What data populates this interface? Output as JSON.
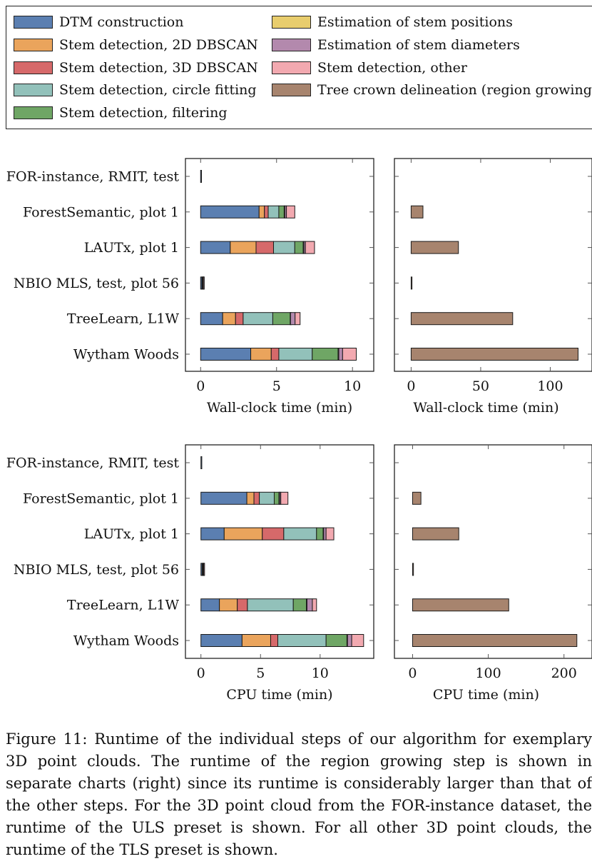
{
  "legend": {
    "items": [
      {
        "label": "DTM construction",
        "color": "#5b7fb1"
      },
      {
        "label": "Stem detection, 2D DBSCAN",
        "color": "#eaa45c"
      },
      {
        "label": "Stem detection, 3D DBSCAN",
        "color": "#d6696a"
      },
      {
        "label": "Stem detection, circle fitting",
        "color": "#92c1ba"
      },
      {
        "label": "Stem detection, filtering",
        "color": "#6fa665"
      },
      {
        "label": "Estimation of stem positions",
        "color": "#e8cd6d"
      },
      {
        "label": "Estimation of stem diameters",
        "color": "#b389ad"
      },
      {
        "label": "Stem detection, other",
        "color": "#f2a9b0"
      },
      {
        "label": "Tree crown delineation (region growing)",
        "color": "#a7846e"
      }
    ]
  },
  "chart_data": [
    {
      "type": "bar",
      "stacked": true,
      "orientation": "horizontal",
      "xlabel": "Wall-clock time (min)",
      "xlim": [
        -1,
        11.4
      ],
      "xticks": [
        0,
        5,
        10
      ],
      "categories": [
        "FOR-instance, RMIT, test",
        "ForestSemantic, plot 1",
        "LAUTx, plot 1",
        "NBIO MLS, test, plot 56",
        "TreeLearn, L1W",
        "Wytham Woods"
      ],
      "series": [
        {
          "name": "DTM construction",
          "values": [
            0.02,
            3.85,
            1.95,
            0.08,
            1.45,
            3.3
          ]
        },
        {
          "name": "Stem detection, 2D DBSCAN",
          "values": [
            0,
            0.35,
            1.7,
            0.04,
            0.85,
            1.35
          ]
        },
        {
          "name": "Stem detection, 3D DBSCAN",
          "values": [
            0,
            0.25,
            1.15,
            0.02,
            0.5,
            0.5
          ]
        },
        {
          "name": "Stem detection, circle fitting",
          "values": [
            0,
            0.7,
            1.4,
            0.03,
            1.95,
            2.2
          ]
        },
        {
          "name": "Stem detection, filtering",
          "values": [
            0,
            0.35,
            0.55,
            0.01,
            1.15,
            1.7
          ]
        },
        {
          "name": "Estimation of stem positions",
          "values": [
            0,
            0.05,
            0.05,
            0,
            0.02,
            0.05
          ]
        },
        {
          "name": "Estimation of stem diameters",
          "values": [
            0,
            0.1,
            0.1,
            0,
            0.3,
            0.25
          ]
        },
        {
          "name": "Stem detection, other",
          "values": [
            0,
            0.55,
            0.6,
            0.02,
            0.33,
            0.9
          ]
        }
      ]
    },
    {
      "type": "bar",
      "orientation": "horizontal",
      "xlabel": "Wall-clock time (min)",
      "xlim": [
        -12,
        130
      ],
      "xticks": [
        0,
        50,
        100
      ],
      "categories": [
        "FOR-instance, RMIT, test",
        "ForestSemantic, plot 1",
        "LAUTx, plot 1",
        "NBIO MLS, test, plot 56",
        "TreeLearn, L1W",
        "Wytham Woods"
      ],
      "series": [
        {
          "name": "Tree crown delineation (region growing)",
          "values": [
            0,
            8.5,
            34,
            0.5,
            73,
            120
          ]
        }
      ]
    },
    {
      "type": "bar",
      "stacked": true,
      "orientation": "horizontal",
      "xlabel": "CPU time (min)",
      "xlim": [
        -1.3,
        14.5
      ],
      "xticks": [
        0,
        5,
        10
      ],
      "categories": [
        "FOR-instance, RMIT, test",
        "ForestSemantic, plot 1",
        "LAUTx, plot 1",
        "NBIO MLS, test, plot 56",
        "TreeLearn, L1W",
        "Wytham Woods"
      ],
      "series": [
        {
          "name": "DTM construction",
          "values": [
            0.03,
            3.85,
            1.95,
            0.1,
            1.55,
            3.45
          ]
        },
        {
          "name": "Stem detection, 2D DBSCAN",
          "values": [
            0,
            0.6,
            3.2,
            0.05,
            1.5,
            2.4
          ]
        },
        {
          "name": "Stem detection, 3D DBSCAN",
          "values": [
            0,
            0.45,
            1.8,
            0.03,
            0.85,
            0.6
          ]
        },
        {
          "name": "Stem detection, circle fitting",
          "values": [
            0,
            1.25,
            2.75,
            0.04,
            3.85,
            4.05
          ]
        },
        {
          "name": "Stem detection, filtering",
          "values": [
            0,
            0.4,
            0.55,
            0.01,
            1.1,
            1.75
          ]
        },
        {
          "name": "Estimation of stem positions",
          "values": [
            0,
            0.05,
            0.05,
            0,
            0.05,
            0.05
          ]
        },
        {
          "name": "Estimation of stem diameters",
          "values": [
            0,
            0.1,
            0.2,
            0,
            0.45,
            0.35
          ]
        },
        {
          "name": "Stem detection, other",
          "values": [
            0,
            0.6,
            0.65,
            0.02,
            0.35,
            1.0
          ]
        }
      ]
    },
    {
      "type": "bar",
      "orientation": "horizontal",
      "xlabel": "CPU time (min)",
      "xlim": [
        -24,
        237
      ],
      "xticks": [
        0,
        100,
        200
      ],
      "categories": [
        "FOR-instance, RMIT, test",
        "ForestSemantic, plot 1",
        "LAUTx, plot 1",
        "NBIO MLS, test, plot 56",
        "TreeLearn, L1W",
        "Wytham Woods"
      ],
      "series": [
        {
          "name": "Tree crown delineation (region growing)",
          "values": [
            0,
            11,
            61,
            1,
            127,
            217
          ]
        }
      ]
    }
  ],
  "caption": "Figure 11: Runtime of the individual steps of our algorithm for exemplary 3D point clouds. The runtime of the region growing step is shown in separate charts (right) since its runtime is considerably larger than that of the other steps. For the 3D point cloud from the FOR-instance dataset, the runtime of the ULS preset is shown. For all other 3D point clouds, the runtime of the TLS preset is shown."
}
